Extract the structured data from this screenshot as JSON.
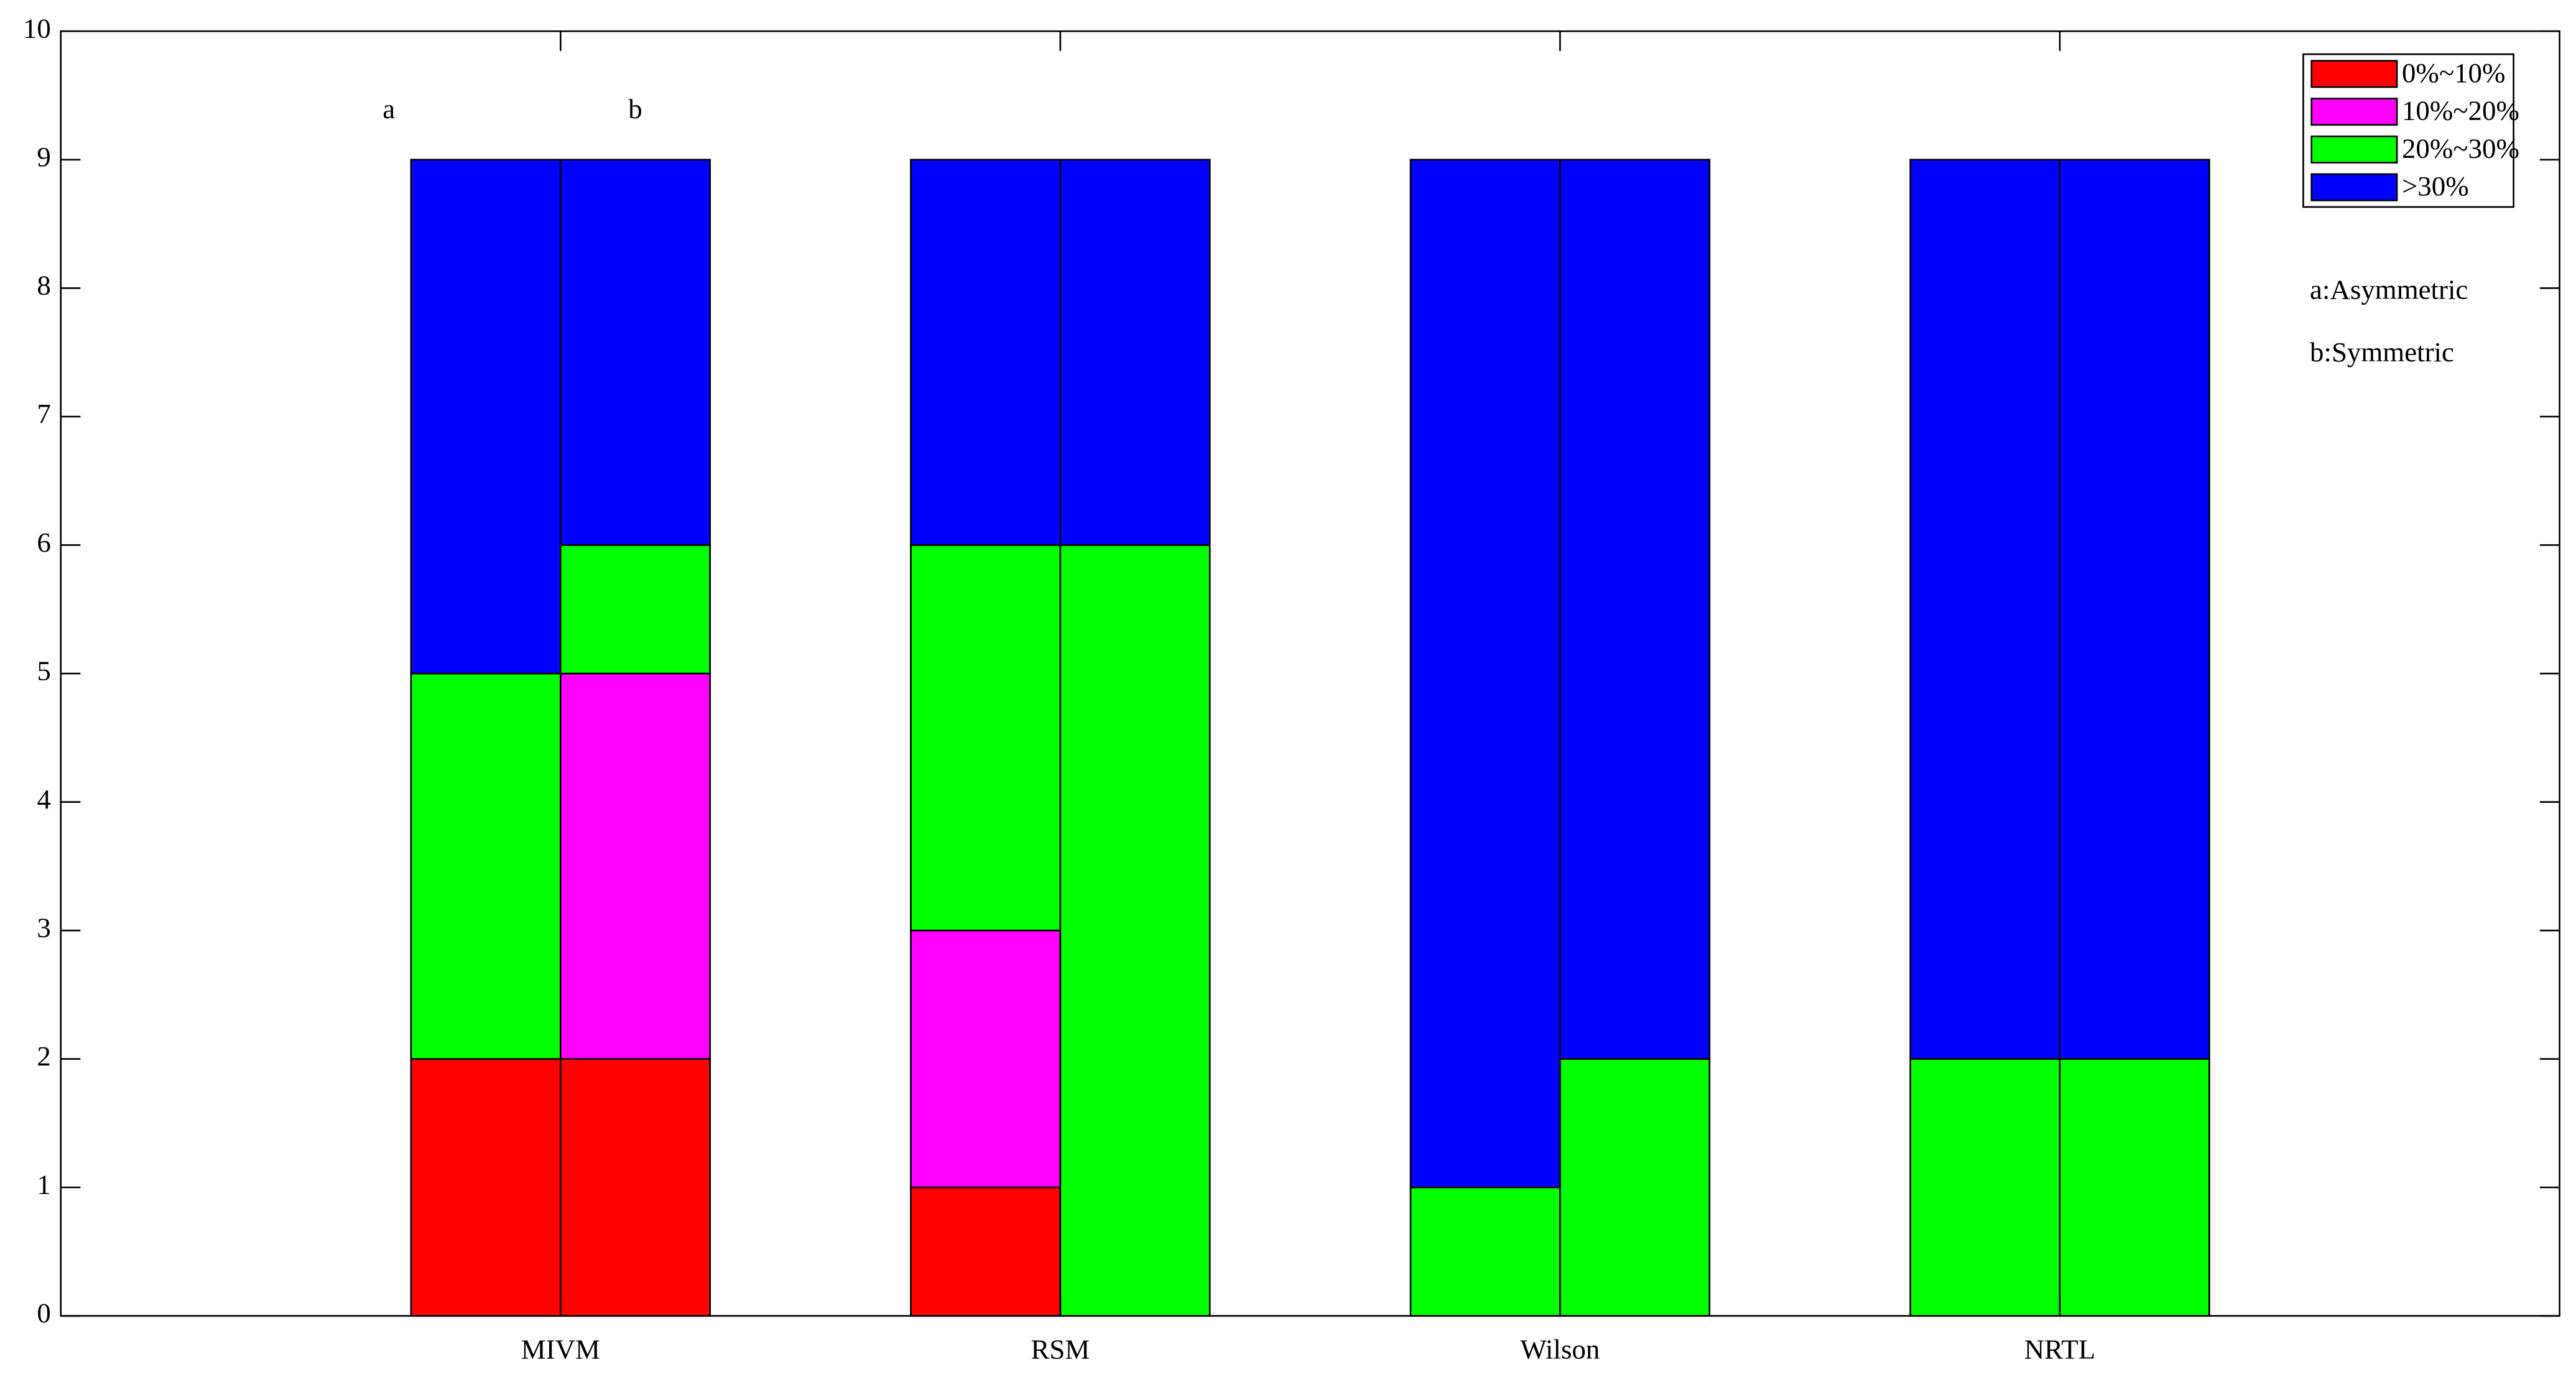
{
  "chart_data": {
    "type": "grouped-stacked-bar",
    "categories": [
      "MIVM",
      "RSM",
      "Wilson",
      "NRTL"
    ],
    "bar_labels": [
      "a",
      "b"
    ],
    "annotations": [
      "a:Asymmetric",
      "b:Symmetric"
    ],
    "series": [
      {
        "name": "0%~10%",
        "color": "#ff0000",
        "values": [
          [
            2,
            2
          ],
          [
            1,
            0
          ],
          [
            0,
            0
          ],
          [
            0,
            0
          ]
        ]
      },
      {
        "name": "10%~20%",
        "color": "#ff00ff",
        "values": [
          [
            0,
            3
          ],
          [
            2,
            0
          ],
          [
            0,
            0
          ],
          [
            0,
            0
          ]
        ]
      },
      {
        "name": "20%~30%",
        "color": "#00ff00",
        "values": [
          [
            3,
            1
          ],
          [
            3,
            6
          ],
          [
            1,
            2
          ],
          [
            2,
            2
          ]
        ]
      },
      {
        "name": ">30%",
        "color": "#0000ff",
        "values": [
          [
            4,
            3
          ],
          [
            3,
            3
          ],
          [
            8,
            7
          ],
          [
            7,
            7
          ]
        ]
      }
    ],
    "ylim": [
      0,
      10
    ],
    "yticks": [
      0,
      1,
      2,
      3,
      4,
      5,
      6,
      7,
      8,
      9,
      10
    ],
    "legend": "top-right"
  }
}
